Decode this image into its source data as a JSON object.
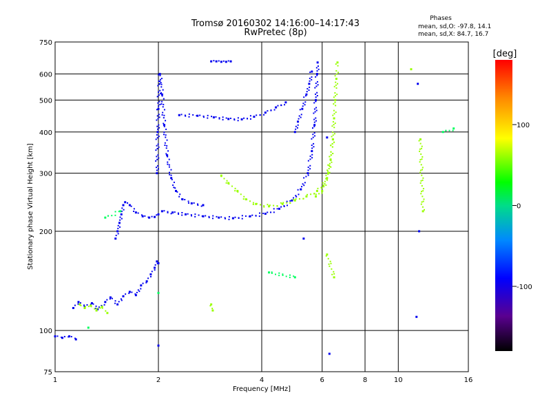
{
  "header": {
    "title_line1": "Tromsø 20160302 14:16:00–14:17:43",
    "title_line2": "RwPretec (8p)",
    "phases_title": "Phases",
    "phases_o": "mean, sd,O: -97.8, 14.1",
    "phases_x": "mean, sd,X:  84.7, 16.7"
  },
  "chart_data": {
    "type": "scatter",
    "title": "Tromsø 20160302 14:16:00–14:17:43",
    "subtitle": "RwPretec (8p)",
    "xlabel": "Frequency [MHz]",
    "ylabel": "Stationary phase Virtual Height [km]",
    "x_scale": "log",
    "y_scale": "log",
    "xlim": [
      1,
      16
    ],
    "ylim": [
      75,
      750
    ],
    "x_ticks": [
      {
        "value": 1,
        "label": "1"
      },
      {
        "value": 2,
        "label": "2"
      },
      {
        "value": 4,
        "label": "4"
      },
      {
        "value": 6,
        "label": "6"
      },
      {
        "value": 8,
        "label": "8"
      },
      {
        "value": 10,
        "label": "10"
      },
      {
        "value": 16,
        "label": "16"
      }
    ],
    "y_ticks": [
      {
        "value": 75,
        "label": "75"
      },
      {
        "value": 100,
        "label": "100"
      },
      {
        "value": 200,
        "label": "200"
      },
      {
        "value": 300,
        "label": "300"
      },
      {
        "value": 400,
        "label": "400"
      },
      {
        "value": 500,
        "label": "500"
      },
      {
        "value": 600,
        "label": "600"
      },
      {
        "value": 750,
        "label": "750"
      }
    ],
    "grid": true,
    "colorbar": {
      "label": "[deg]",
      "min": -180,
      "max": 180,
      "ticks": [
        {
          "value": 100,
          "label": "100"
        },
        {
          "value": 0,
          "label": "0"
        },
        {
          "value": -100,
          "label": "-100"
        }
      ]
    },
    "series": [
      {
        "mode": "O",
        "phase_deg": -98,
        "traces": [
          {
            "points": [
              [
                1.0,
                96
              ],
              [
                1.05,
                95
              ],
              [
                1.1,
                96
              ],
              [
                1.15,
                94
              ]
            ]
          },
          {
            "points": [
              [
                1.13,
                117
              ],
              [
                1.17,
                122
              ],
              [
                1.22,
                118
              ],
              [
                1.28,
                121
              ],
              [
                1.33,
                116
              ],
              [
                1.4,
                122
              ],
              [
                1.45,
                126
              ],
              [
                1.52,
                120
              ],
              [
                1.58,
                127
              ],
              [
                1.65,
                131
              ],
              [
                1.72,
                128
              ],
              [
                1.78,
                137
              ],
              [
                1.85,
                141
              ],
              [
                1.9,
                148
              ],
              [
                1.95,
                155
              ],
              [
                1.98,
                162
              ],
              [
                2.0,
                160
              ]
            ]
          },
          {
            "points": [
              [
                1.5,
                190
              ],
              [
                1.52,
                200
              ],
              [
                1.54,
                212
              ],
              [
                1.56,
                225
              ],
              [
                1.58,
                240
              ],
              [
                1.6,
                245
              ],
              [
                1.65,
                240
              ],
              [
                1.72,
                228
              ],
              [
                1.8,
                222
              ],
              [
                1.88,
                220
              ],
              [
                1.95,
                221
              ],
              [
                2.0,
                225
              ]
            ]
          },
          {
            "points": [
              [
                1.98,
                300
              ],
              [
                1.99,
                400
              ],
              [
                2.0,
                470
              ],
              [
                2.02,
                600
              ],
              [
                2.05,
                520
              ],
              [
                2.08,
                420
              ],
              [
                2.12,
                340
              ],
              [
                2.18,
                290
              ],
              [
                2.25,
                265
              ],
              [
                2.35,
                250
              ],
              [
                2.5,
                243
              ],
              [
                2.7,
                240
              ]
            ]
          },
          {
            "points": [
              [
                2.05,
                230
              ],
              [
                2.2,
                228
              ],
              [
                2.4,
                225
              ],
              [
                2.7,
                222
              ],
              [
                3.0,
                220
              ],
              [
                3.3,
                219
              ],
              [
                3.7,
                222
              ],
              [
                4.1,
                226
              ],
              [
                4.5,
                234
              ],
              [
                4.9,
                248
              ],
              [
                5.2,
                268
              ],
              [
                5.45,
                300
              ],
              [
                5.6,
                350
              ],
              [
                5.7,
                420
              ],
              [
                5.75,
                500
              ],
              [
                5.8,
                600
              ],
              [
                5.82,
                650
              ]
            ]
          },
          {
            "points": [
              [
                2.3,
                450
              ],
              [
                2.6,
                448
              ],
              [
                2.9,
                443
              ],
              [
                3.2,
                438
              ],
              [
                3.5,
                437
              ],
              [
                3.8,
                445
              ],
              [
                4.1,
                458
              ],
              [
                4.4,
                475
              ],
              [
                4.7,
                492
              ]
            ]
          },
          {
            "points": [
              [
                2.85,
                655
              ],
              [
                2.95,
                655
              ],
              [
                3.05,
                653
              ],
              [
                3.15,
                653
              ],
              [
                3.25,
                655
              ]
            ]
          },
          {
            "points": [
              [
                5.0,
                400
              ],
              [
                5.1,
                430
              ],
              [
                5.25,
                470
              ],
              [
                5.4,
                520
              ],
              [
                5.5,
                560
              ],
              [
                5.6,
                610
              ]
            ]
          },
          {
            "points": [
              [
                6.2,
                385
              ],
              [
                11.4,
                560
              ],
              [
                11.5,
                200
              ],
              [
                11.3,
                110
              ],
              [
                2.0,
                90
              ],
              [
                5.3,
                190
              ],
              [
                6.3,
                85
              ]
            ]
          }
        ]
      },
      {
        "mode": "X",
        "phase_deg": 85,
        "traces": [
          {
            "points": [
              [
                1.18,
                120
              ],
              [
                1.22,
                117
              ],
              [
                1.27,
                119
              ],
              [
                1.32,
                115
              ],
              [
                1.37,
                118
              ],
              [
                1.42,
                113
              ]
            ]
          },
          {
            "points": [
              [
                3.05,
                295
              ],
              [
                3.2,
                280
              ],
              [
                3.4,
                265
              ],
              [
                3.6,
                250
              ],
              [
                3.85,
                242
              ],
              [
                4.2,
                238
              ],
              [
                4.6,
                242
              ],
              [
                5.0,
                248
              ],
              [
                5.4,
                255
              ],
              [
                5.8,
                265
              ],
              [
                6.05,
                275
              ],
              [
                6.25,
                300
              ],
              [
                6.35,
                330
              ],
              [
                6.45,
                380
              ],
              [
                6.5,
                440
              ],
              [
                6.55,
                500
              ],
              [
                6.6,
                580
              ],
              [
                6.65,
                650
              ]
            ]
          },
          {
            "points": [
              [
                5.75,
                255
              ],
              [
                6.0,
                265
              ],
              [
                6.2,
                290
              ],
              [
                6.35,
                330
              ],
              [
                6.45,
                380
              ]
            ]
          },
          {
            "points": [
              [
                2.85,
                120
              ],
              [
                2.88,
                115
              ],
              [
                6.2,
                170
              ],
              [
                6.5,
                145
              ],
              [
                11.6,
                380
              ],
              [
                11.8,
                230
              ],
              [
                10.9,
                620
              ]
            ]
          }
        ]
      },
      {
        "mode": "other",
        "phase_deg": 20,
        "traces": [
          {
            "points": [
              [
                1.25,
                102
              ],
              [
                1.4,
                220
              ],
              [
                1.55,
                230
              ],
              [
                2.0,
                130
              ],
              [
                4.2,
                150
              ],
              [
                5.0,
                145
              ],
              [
                13.5,
                400
              ],
              [
                14.5,
                410
              ]
            ]
          }
        ]
      }
    ]
  }
}
